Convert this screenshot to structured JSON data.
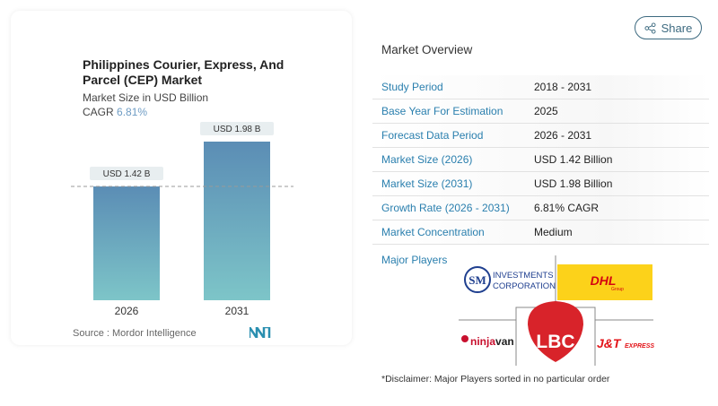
{
  "chart_data": {
    "type": "bar",
    "title": "Philippines Courier, Express, And Parcel (CEP) Market",
    "subtitle": "Market Size in USD Billion",
    "cagr_label": "CAGR",
    "cagr_value": "6.81%",
    "categories": [
      "2026",
      "2031"
    ],
    "values": [
      1.42,
      1.98
    ],
    "data_labels": [
      "USD 1.42 B",
      "USD 1.98 B"
    ],
    "source": "Source :  Mordor Intelligence",
    "colors": {
      "bar_top": "#5b8db5",
      "bar_bottom": "#7dc5c8",
      "cagr": "#6e9cc4"
    },
    "grid": false,
    "reference_line": "dashed at 2026 value"
  },
  "share_button": {
    "label": "Share",
    "icon": "share-icon"
  },
  "overview": {
    "title": "Market Overview",
    "rows": [
      {
        "key": "Study Period",
        "value": "2018 - 2031"
      },
      {
        "key": "Base Year For Estimation",
        "value": "2025"
      },
      {
        "key": "Forecast Data Period",
        "value": "2026 - 2031"
      },
      {
        "key": "Market Size (2026)",
        "value": "USD 1.42 Billion"
      },
      {
        "key": "Market Size (2031)",
        "value": "USD 1.98 Billion"
      },
      {
        "key": "Growth Rate (2026 - 2031)",
        "value": "6.81% CAGR"
      },
      {
        "key": "Market Concentration",
        "value": "Medium"
      }
    ]
  },
  "major_players": {
    "title": "Major Players",
    "logos": [
      "SM INVESTMENTS CORPORATION",
      "DHL Group",
      "LBC",
      "ninjavan",
      "J&T EXPRESS"
    ],
    "disclaimer": "*Disclaimer: Major Players sorted in no particular order"
  }
}
